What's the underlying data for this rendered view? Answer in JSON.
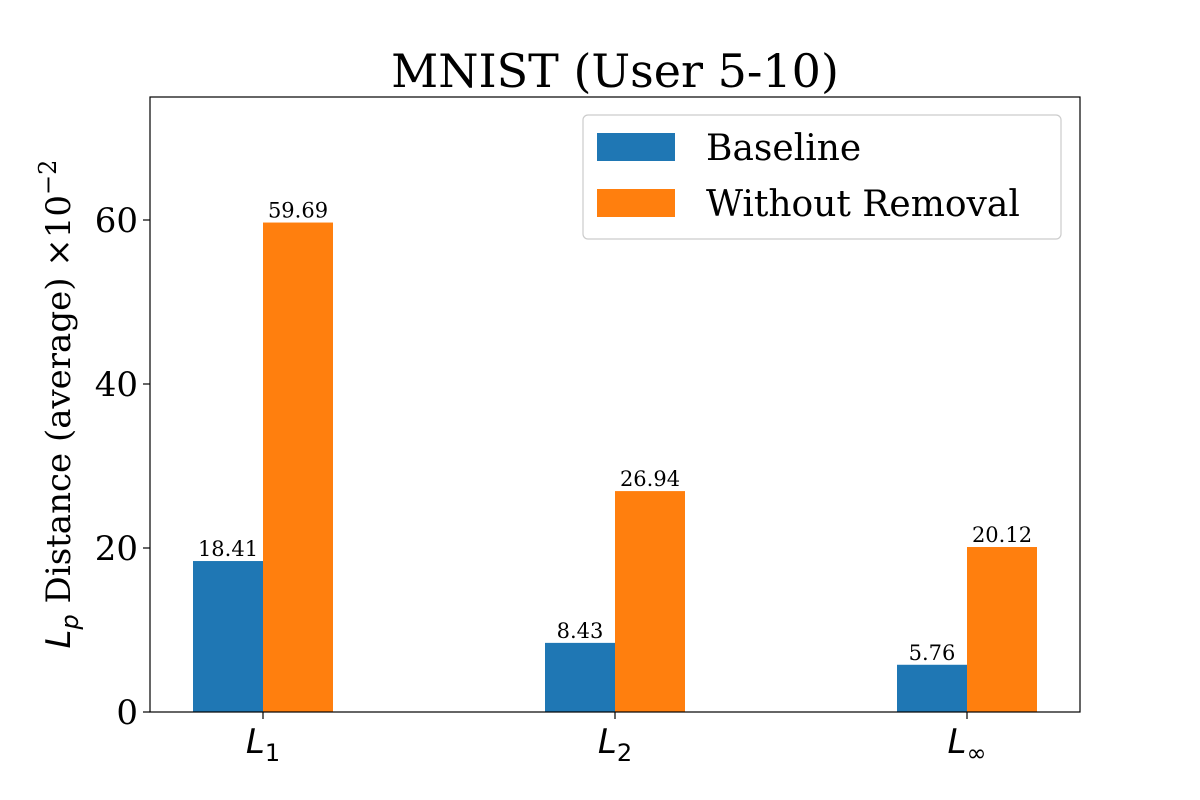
{
  "chart_data": {
    "type": "bar",
    "title": "MNIST (User 5-10)",
    "ylabel": {
      "prefix": "L",
      "prefix_sub": "p",
      "main": " Distance (average) ×10",
      "sup": "−2"
    },
    "categories": [
      {
        "base": "L",
        "sub": "1"
      },
      {
        "base": "L",
        "sub": "2"
      },
      {
        "base": "L",
        "sub": "∞"
      }
    ],
    "series": [
      {
        "name": "Baseline",
        "color": "#1f77b4",
        "values": [
          18.41,
          8.43,
          5.76
        ],
        "labels": [
          "18.41",
          "8.43",
          "5.76"
        ]
      },
      {
        "name": "Without Removal",
        "color": "#ff7f0e",
        "values": [
          59.69,
          26.94,
          20.12
        ],
        "labels": [
          "59.69",
          "26.94",
          "20.12"
        ]
      }
    ],
    "ylim": [
      0,
      75
    ],
    "yticks": [
      0,
      20,
      40,
      60
    ],
    "ytick_labels": [
      "0",
      "20",
      "40",
      "60"
    ],
    "grid": false,
    "legend_position": "top-right"
  }
}
